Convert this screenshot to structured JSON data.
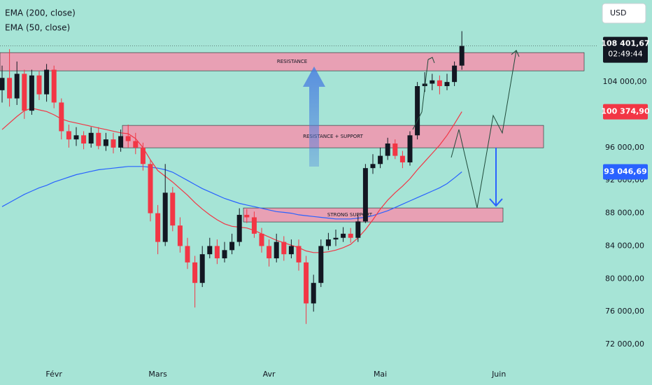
{
  "chart_data": {
    "type": "candlestick",
    "currency": "USD",
    "categories": [
      null,
      null,
      null,
      null,
      null,
      null,
      null,
      "Févr",
      null,
      null,
      null,
      null,
      null,
      null,
      null,
      null,
      null,
      null,
      null,
      null,
      null,
      "Mars",
      null,
      null,
      null,
      null,
      null,
      null,
      null,
      null,
      null,
      null,
      null,
      null,
      null,
      null,
      "Avr",
      null,
      null,
      null,
      null,
      null,
      null,
      null,
      null,
      null,
      null,
      null,
      null,
      null,
      null,
      "Mai",
      null,
      null,
      null,
      null,
      null,
      null,
      null,
      null,
      null,
      null,
      null,
      null,
      null,
      null,
      null,
      "Juin"
    ],
    "candles": {
      "up_color": "#131722",
      "down_color": "#f23645",
      "open": [
        103000,
        104500,
        102000,
        105000,
        100500,
        104800,
        102500,
        105500,
        101500,
        98000,
        97000,
        97500,
        96500,
        97800,
        96200,
        97000,
        96000,
        97400,
        96800,
        96000,
        94000,
        88000,
        84500,
        90500,
        86500,
        84000,
        82000,
        79500,
        83000,
        84000,
        82500,
        83500,
        84500,
        87800,
        87500,
        85500,
        84000,
        82500,
        84500,
        83000,
        84000,
        82000,
        77000,
        79500,
        84000,
        84800,
        85000,
        85500,
        85000,
        87000,
        93500,
        94000,
        95000,
        96500,
        95000,
        94200,
        97500,
        103500,
        103800,
        104200,
        103500,
        104000,
        106000,
        null,
        null,
        null,
        null,
        null
      ],
      "high": [
        106000,
        108000,
        106500,
        105500,
        105500,
        105300,
        106200,
        106000,
        102000,
        98800,
        98500,
        98000,
        98500,
        98500,
        97800,
        97800,
        98200,
        98800,
        97800,
        96600,
        94500,
        89000,
        94000,
        91200,
        87500,
        85000,
        82800,
        84000,
        85000,
        84800,
        84500,
        85500,
        88600,
        88500,
        88200,
        86200,
        84800,
        85500,
        85200,
        84800,
        84800,
        82800,
        80500,
        84800,
        85600,
        86000,
        86300,
        86200,
        87800,
        94000,
        95200,
        96000,
        97200,
        97000,
        95600,
        98000,
        104000,
        105200,
        105000,
        104800,
        105000,
        106500,
        110200,
        null,
        null,
        null,
        null,
        null
      ],
      "low": [
        101500,
        101000,
        101200,
        99500,
        100000,
        101800,
        101600,
        100800,
        97000,
        96000,
        96200,
        95800,
        96000,
        95800,
        95600,
        95300,
        95500,
        96000,
        95200,
        93200,
        87000,
        83000,
        84000,
        85800,
        83200,
        81200,
        76500,
        79000,
        82500,
        81800,
        82000,
        83000,
        84000,
        86800,
        85000,
        83200,
        81500,
        82000,
        82200,
        82500,
        81000,
        74500,
        76000,
        79000,
        83500,
        84000,
        84500,
        84400,
        84500,
        86800,
        92800,
        93500,
        94500,
        94600,
        93500,
        93800,
        97000,
        102800,
        103000,
        102500,
        103000,
        103500,
        105500,
        null,
        null,
        null,
        null,
        null
      ],
      "close": [
        104500,
        102000,
        105000,
        100500,
        104800,
        102500,
        105500,
        101500,
        98000,
        97000,
        97500,
        96500,
        97800,
        96200,
        97000,
        96000,
        97400,
        96800,
        96000,
        94000,
        88000,
        84500,
        90500,
        86500,
        84000,
        82000,
        79500,
        83000,
        84000,
        82500,
        83500,
        84500,
        87800,
        87500,
        85500,
        84000,
        82500,
        84500,
        83000,
        84000,
        82000,
        77000,
        79500,
        84000,
        84800,
        85000,
        85500,
        85000,
        87000,
        93500,
        94000,
        95000,
        96500,
        95000,
        94200,
        97500,
        103500,
        103800,
        104200,
        103500,
        104000,
        106000,
        108401.67,
        null,
        null,
        null,
        null,
        null
      ],
      "value_labels": [
        null,
        null,
        null,
        null,
        null,
        null,
        null,
        null,
        null,
        null,
        null,
        null,
        null,
        null,
        null,
        null,
        null,
        null,
        null,
        null,
        null,
        null,
        null,
        null,
        null,
        null,
        null,
        null,
        null,
        null,
        null,
        null,
        null,
        null,
        null,
        null,
        null,
        null,
        null,
        null,
        null,
        null,
        null,
        null,
        null,
        null,
        null,
        null,
        null,
        null,
        null,
        null,
        null,
        null,
        null,
        null,
        null,
        null,
        null,
        null,
        null,
        null,
        "108 401,67",
        null,
        null,
        null,
        null,
        null
      ],
      "countdown": "02:49:44"
    },
    "series": [
      {
        "name": "EMA (200, close)",
        "color": "#2962ff",
        "values": [
          88800,
          89300,
          89800,
          90300,
          90700,
          91100,
          91400,
          91800,
          92100,
          92400,
          92700,
          92900,
          93100,
          93300,
          93400,
          93500,
          93600,
          93700,
          93700,
          93700,
          93600,
          93500,
          93300,
          93000,
          92500,
          92000,
          91500,
          91000,
          90600,
          90200,
          89800,
          89500,
          89200,
          89000,
          88800,
          88600,
          88400,
          88200,
          88100,
          88000,
          87800,
          87700,
          87600,
          87500,
          87400,
          87300,
          87300,
          87300,
          87400,
          87500,
          87700,
          88000,
          88300,
          88700,
          89100,
          89500,
          89900,
          90300,
          90700,
          91100,
          91600,
          92300,
          93046.69,
          null,
          null,
          null,
          null,
          null
        ],
        "value_labels": [
          null,
          null,
          null,
          null,
          null,
          null,
          null,
          null,
          null,
          null,
          null,
          null,
          null,
          null,
          null,
          null,
          null,
          null,
          null,
          null,
          null,
          null,
          null,
          null,
          null,
          null,
          null,
          null,
          null,
          null,
          null,
          null,
          null,
          null,
          null,
          null,
          null,
          null,
          null,
          null,
          null,
          null,
          null,
          null,
          null,
          null,
          null,
          null,
          null,
          null,
          null,
          null,
          null,
          null,
          null,
          null,
          null,
          null,
          null,
          null,
          null,
          null,
          "93 046,69",
          null,
          null,
          null,
          null,
          null
        ]
      },
      {
        "name": "EMA (50, close)",
        "color": "#f23645",
        "values": [
          98200,
          99000,
          99800,
          100500,
          100800,
          100600,
          100400,
          100000,
          99500,
          99200,
          99000,
          98800,
          98600,
          98400,
          98200,
          98000,
          97800,
          97700,
          97100,
          96000,
          94500,
          93200,
          92500,
          91800,
          91000,
          90200,
          89300,
          88500,
          87800,
          87200,
          86700,
          86400,
          86300,
          86200,
          85900,
          85500,
          85100,
          84700,
          84400,
          84100,
          83800,
          83400,
          83200,
          83200,
          83300,
          83500,
          83800,
          84200,
          85000,
          86000,
          87200,
          88500,
          89600,
          90500,
          91300,
          92200,
          93300,
          94300,
          95300,
          96300,
          97500,
          98900,
          100374.9,
          null,
          null,
          null,
          null,
          null
        ],
        "value_labels": [
          null,
          null,
          null,
          null,
          null,
          null,
          null,
          null,
          null,
          null,
          null,
          null,
          null,
          null,
          null,
          null,
          null,
          null,
          null,
          null,
          null,
          null,
          null,
          null,
          null,
          null,
          null,
          null,
          null,
          null,
          null,
          null,
          null,
          null,
          null,
          null,
          null,
          null,
          null,
          null,
          null,
          null,
          null,
          null,
          null,
          null,
          null,
          null,
          null,
          null,
          null,
          null,
          null,
          null,
          null,
          null,
          null,
          null,
          null,
          null,
          null,
          null,
          "100 374,90",
          null,
          null,
          null,
          null,
          null
        ]
      }
    ],
    "zones": [
      {
        "label": "RESISTANCE",
        "low": 105365,
        "high": 107584,
        "color": "#e8a0b4"
      },
      {
        "label": "RESISTANCE + SUPPORT",
        "low": 95978,
        "high": 98710,
        "color": "#e8a0b4"
      },
      {
        "label": "STRONG SUPPORT",
        "low": 86933,
        "high": 88640,
        "color": "#e8a0b4"
      }
    ],
    "ylim": [
      70040,
      114000
    ],
    "yticks": [
      {
        "value": 72000,
        "label": "72 000,00"
      },
      {
        "value": 76000,
        "label": "76 000,00"
      },
      {
        "value": 80000,
        "label": "80 000,00"
      },
      {
        "value": 84000,
        "label": "84 000,00"
      },
      {
        "value": 88000,
        "label": "88 000,00"
      },
      {
        "value": 92000,
        "label": "92 000,00"
      },
      {
        "value": 96000,
        "label": "96 000,00"
      },
      {
        "value": 104000,
        "label": "104 000,00"
      }
    ],
    "grid": false
  }
}
